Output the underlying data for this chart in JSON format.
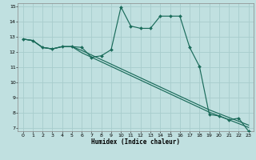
{
  "xlabel": "Humidex (Indice chaleur)",
  "ylabel": "",
  "bg_color": "#c0e0e0",
  "grid_color": "#a8cccc",
  "line_color": "#1a6b5a",
  "xlim": [
    -0.5,
    23.5
  ],
  "ylim": [
    6.8,
    15.2
  ],
  "xticks": [
    0,
    1,
    2,
    3,
    4,
    5,
    6,
    7,
    8,
    9,
    10,
    11,
    12,
    13,
    14,
    15,
    16,
    17,
    18,
    19,
    20,
    21,
    22,
    23
  ],
  "yticks": [
    7,
    8,
    9,
    10,
    11,
    12,
    13,
    14,
    15
  ],
  "line1_x": [
    0,
    1,
    2,
    3,
    4,
    5,
    6,
    7,
    8,
    9,
    10,
    11,
    12,
    13,
    14,
    15,
    16,
    17,
    18,
    19,
    20,
    21,
    22,
    23
  ],
  "line1_y": [
    12.85,
    12.75,
    12.3,
    12.2,
    12.35,
    12.35,
    12.3,
    11.65,
    11.75,
    12.15,
    14.95,
    13.7,
    13.55,
    13.55,
    14.35,
    14.35,
    14.35,
    12.3,
    11.05,
    7.9,
    7.8,
    7.55,
    7.65,
    6.8
  ],
  "line2_x": [
    0,
    1,
    2,
    3,
    4,
    5,
    6,
    7,
    8,
    9,
    10,
    11,
    12,
    13,
    14,
    15,
    16,
    17,
    18,
    19,
    20,
    21,
    22,
    23
  ],
  "line2_y": [
    12.85,
    12.75,
    12.3,
    12.2,
    12.35,
    12.35,
    11.95,
    11.65,
    11.35,
    11.05,
    10.75,
    10.45,
    10.15,
    9.85,
    9.55,
    9.25,
    8.95,
    8.65,
    8.35,
    8.05,
    7.8,
    7.55,
    7.3,
    7.05
  ],
  "line3_x": [
    0,
    1,
    2,
    3,
    4,
    5,
    6,
    7,
    8,
    9,
    10,
    11,
    12,
    13,
    14,
    15,
    16,
    17,
    18,
    19,
    20,
    21,
    22,
    23
  ],
  "line3_y": [
    12.85,
    12.75,
    12.3,
    12.2,
    12.35,
    12.35,
    12.1,
    11.8,
    11.5,
    11.2,
    10.9,
    10.6,
    10.3,
    10.0,
    9.7,
    9.4,
    9.1,
    8.8,
    8.5,
    8.2,
    7.95,
    7.7,
    7.45,
    7.2
  ]
}
